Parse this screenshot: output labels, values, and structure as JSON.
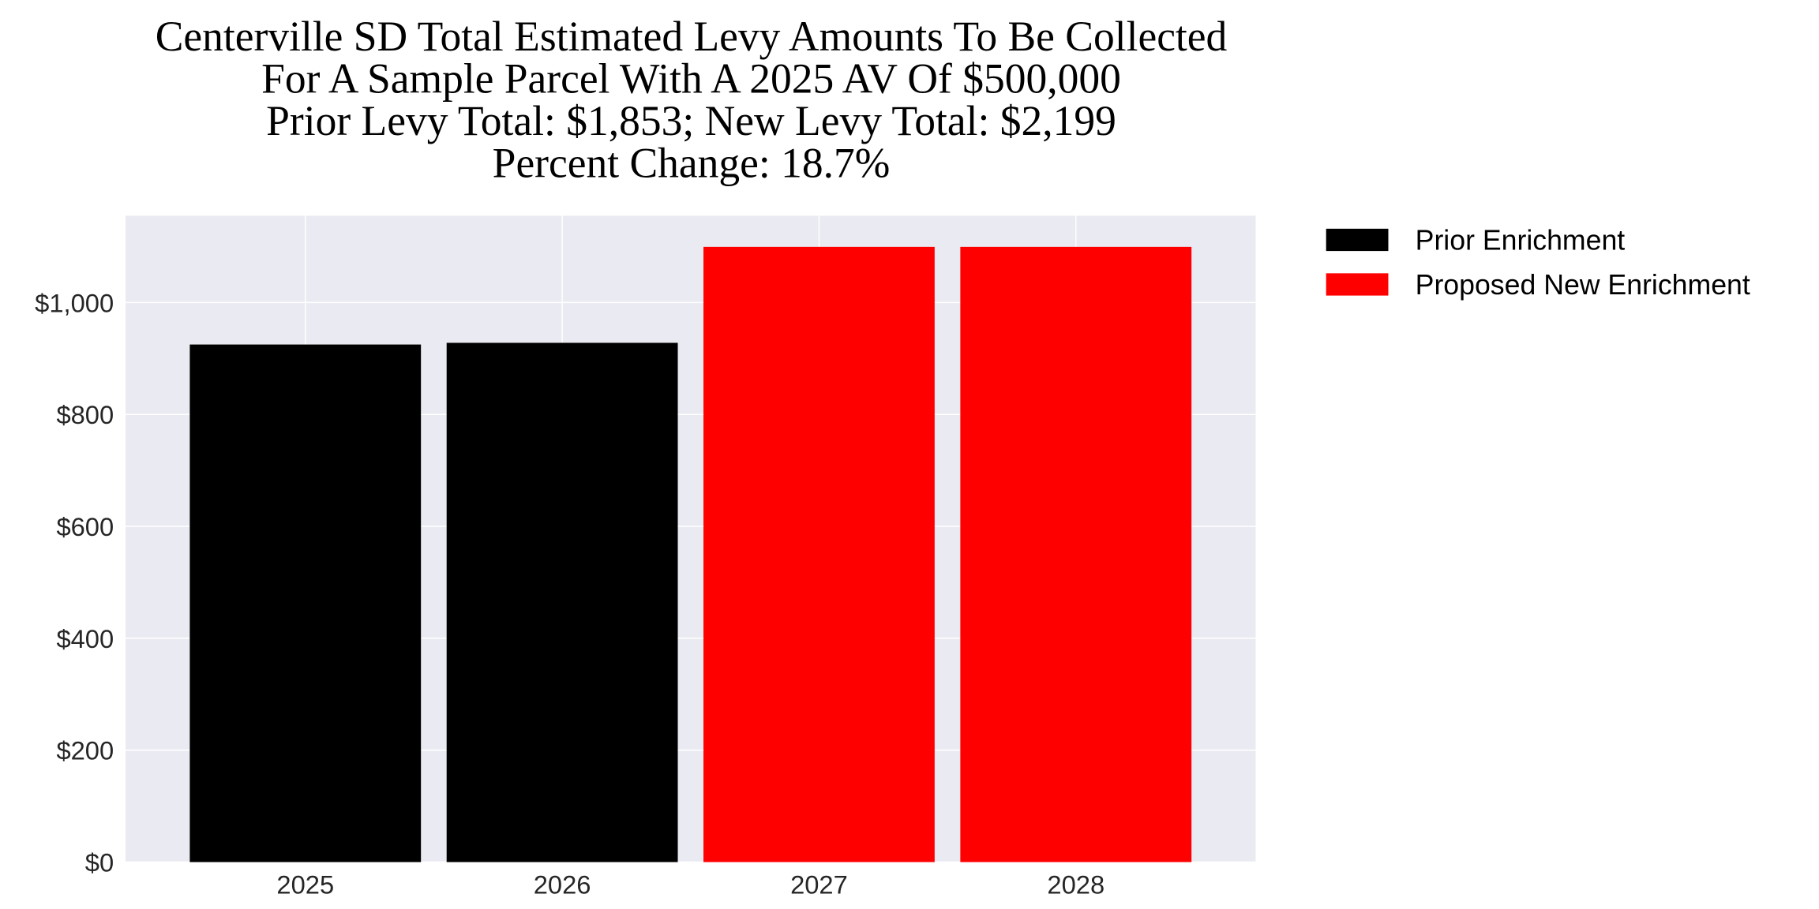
{
  "chart_data": {
    "type": "bar",
    "title_lines": [
      "Centerville SD Total Estimated Levy Amounts To Be Collected",
      "For A Sample Parcel With A 2025 AV Of $500,000",
      "Prior Levy Total:  $1,853; New Levy Total: $2,199",
      "Percent Change: 18.7%"
    ],
    "categories": [
      "2025",
      "2026",
      "2027",
      "2028"
    ],
    "values": [
      925,
      928,
      1099.5,
      1099.5
    ],
    "bar_series": [
      "Prior Enrichment",
      "Prior Enrichment",
      "Proposed New Enrichment",
      "Proposed New Enrichment"
    ],
    "ylim": [
      0,
      1155
    ],
    "yticks": [
      0,
      200,
      400,
      600,
      800,
      1000
    ],
    "ytick_labels": [
      "$0",
      "$200",
      "$400",
      "$600",
      "$800",
      "$1,000"
    ],
    "grid": true,
    "legend_placement": "outside-top-right",
    "legend": [
      {
        "name": "Prior Enrichment",
        "color": "#000000"
      },
      {
        "name": "Proposed New Enrichment",
        "color": "#ff0000"
      }
    ],
    "background_color": "#eaeaf2"
  }
}
